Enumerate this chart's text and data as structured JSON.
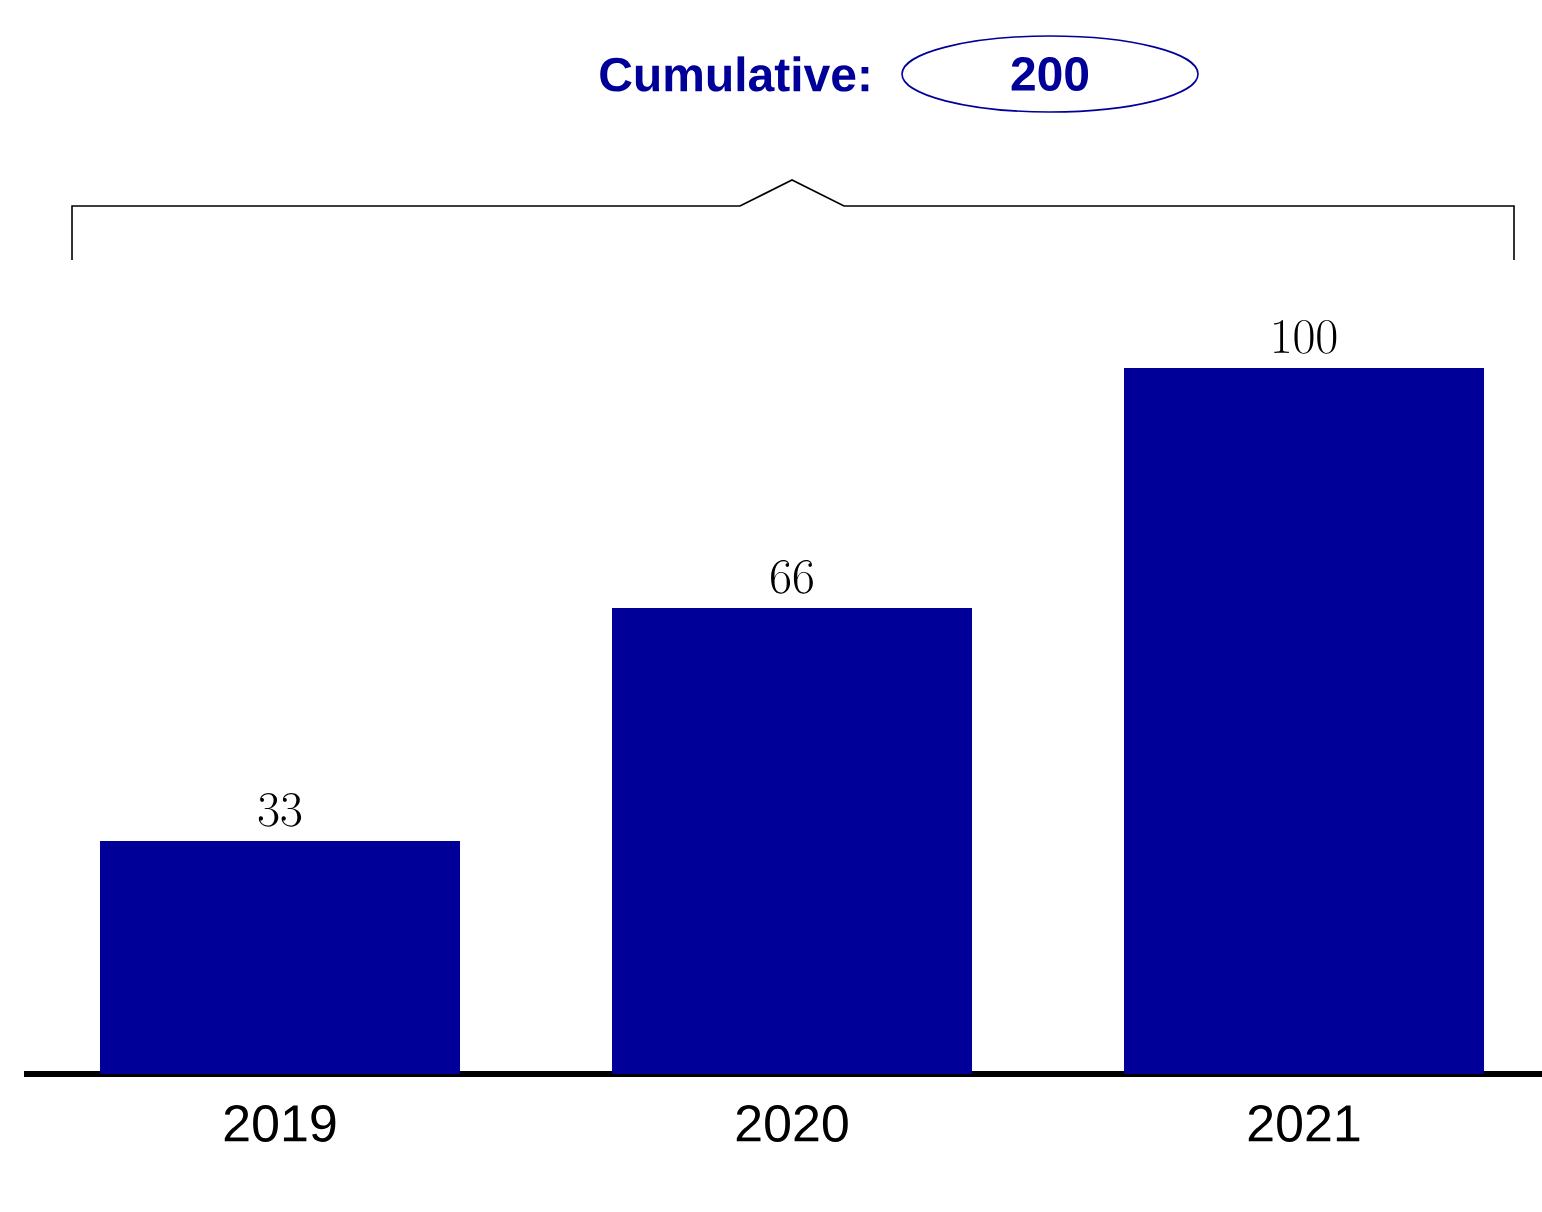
{
  "chart_data": {
    "type": "bar",
    "title": "Cumulative:",
    "annotations": [
      "200"
    ],
    "categories": [
      "2019",
      "2020",
      "2021"
    ],
    "values": [
      33,
      66,
      100
    ],
    "color": "#000099",
    "data_labels": true
  }
}
